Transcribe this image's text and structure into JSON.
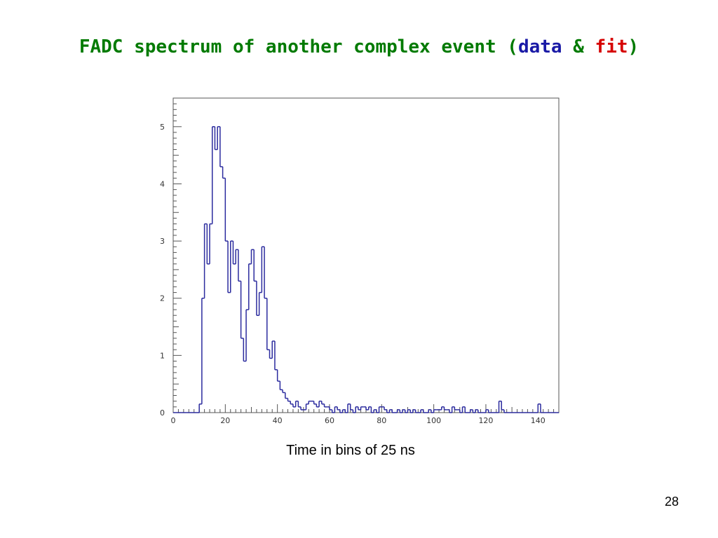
{
  "slide": {
    "title_main": "FADC spectrum of another complex event (",
    "title_data": "data",
    "title_amp": " & ",
    "title_fit": "fit",
    "title_close": ")",
    "page_number": "28",
    "colors": {
      "title": "#007a00",
      "data_word": "#1a1aa6",
      "fit_word": "#d60000",
      "histogram": "#2b2b9e",
      "axis": "#555555"
    }
  },
  "chart_data": {
    "type": "histogram",
    "title": "",
    "xlabel": "Time in bins of 25 ns",
    "ylabel": "",
    "xlim": [
      0,
      148
    ],
    "ylim": [
      0,
      5.5
    ],
    "grid": false,
    "x_ticks": [
      0,
      20,
      40,
      60,
      80,
      100,
      120,
      140
    ],
    "y_ticks": [
      0,
      1,
      2,
      3,
      4,
      5
    ],
    "bin_width": 1,
    "x_start": 0,
    "values": [
      0,
      0,
      0,
      0,
      0,
      0,
      0,
      0,
      0,
      0,
      0.15,
      2.0,
      3.3,
      2.6,
      3.3,
      5.0,
      4.6,
      5.0,
      4.3,
      4.1,
      3.0,
      2.1,
      3.0,
      2.6,
      2.85,
      2.3,
      1.3,
      0.9,
      1.8,
      2.6,
      2.85,
      2.3,
      1.7,
      2.1,
      2.9,
      2.0,
      1.1,
      0.95,
      1.25,
      0.75,
      0.55,
      0.4,
      0.35,
      0.25,
      0.2,
      0.15,
      0.1,
      0.2,
      0.1,
      0.05,
      0.05,
      0.15,
      0.2,
      0.2,
      0.15,
      0.1,
      0.2,
      0.15,
      0.1,
      0.1,
      0.05,
      0.0,
      0.1,
      0.05,
      0.0,
      0.05,
      0.0,
      0.15,
      0.05,
      0.0,
      0.1,
      0.05,
      0.1,
      0.1,
      0.05,
      0.1,
      0.0,
      0.05,
      0.0,
      0.1,
      0.1,
      0.05,
      0.0,
      0.05,
      0.0,
      0.0,
      0.05,
      0.0,
      0.05,
      0.0,
      0.05,
      0.0,
      0.05,
      0.0,
      0.0,
      0.05,
      0.0,
      0.0,
      0.05,
      0.0,
      0.05,
      0.05,
      0.05,
      0.1,
      0.05,
      0.05,
      0.0,
      0.1,
      0.05,
      0.05,
      0.0,
      0.1,
      0.0,
      0.0,
      0.05,
      0.0,
      0.05,
      0.0,
      0.0,
      0.0,
      0.05,
      0.0,
      0.0,
      0.0,
      0.0,
      0.2,
      0.05,
      0.0,
      0.0,
      0.0,
      0.0,
      0.0,
      0.0,
      0.0,
      0.0,
      0.0,
      0.0,
      0.0,
      0.0,
      0.0,
      0.15,
      0.0,
      0.0,
      0.0,
      0.0,
      0.0,
      0.0,
      0.0
    ]
  }
}
